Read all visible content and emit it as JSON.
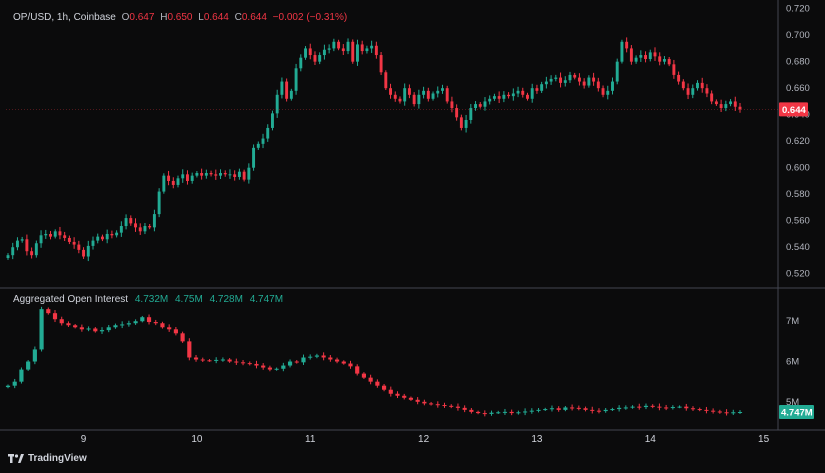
{
  "header": {
    "symbol": "OP/USD, 1h, Coinbase",
    "o_label": "O",
    "o_value": "0.647",
    "h_label": "H",
    "h_value": "0.650",
    "l_label": "L",
    "l_value": "0.644",
    "c_label": "C",
    "c_value": "0.644",
    "change": "−0.002 (−0.31%)"
  },
  "oi_legend": {
    "title": "Aggregated Open Interest",
    "v1": "4.732M",
    "v2": "4.75M",
    "v3": "4.728M",
    "v4": "4.747M"
  },
  "brand": {
    "name": "TradingView",
    "icon": "tradingview-logo-icon"
  },
  "colors": {
    "up": "#22ab94",
    "down": "#f23645",
    "background": "#0b0b0c",
    "grid": "#434651"
  },
  "chart_data": [
    {
      "type": "candlestick",
      "series": "OP/USD price",
      "ylim": [
        0.51,
        0.722
      ],
      "y_ticks": [
        "0.720",
        "0.700",
        "0.680",
        "0.660",
        "0.640",
        "0.620",
        "0.600",
        "0.580",
        "0.560",
        "0.540",
        "0.520"
      ],
      "last_price_badge": "0.644",
      "x_ticks": [
        "9",
        "10",
        "11",
        "12",
        "13",
        "14",
        "15"
      ],
      "x_tick_index": [
        16,
        40,
        64,
        88,
        112,
        136,
        160
      ],
      "closes": [
        0.534,
        0.54,
        0.545,
        0.546,
        0.537,
        0.534,
        0.543,
        0.549,
        0.55,
        0.548,
        0.552,
        0.549,
        0.547,
        0.544,
        0.542,
        0.538,
        0.533,
        0.541,
        0.545,
        0.548,
        0.546,
        0.55,
        0.549,
        0.551,
        0.556,
        0.562,
        0.558,
        0.555,
        0.552,
        0.556,
        0.555,
        0.565,
        0.582,
        0.594,
        0.59,
        0.587,
        0.592,
        0.595,
        0.59,
        0.594,
        0.596,
        0.594,
        0.596,
        0.595,
        0.594,
        0.596,
        0.595,
        0.595,
        0.593,
        0.597,
        0.591,
        0.6,
        0.615,
        0.618,
        0.622,
        0.63,
        0.641,
        0.655,
        0.665,
        0.652,
        0.658,
        0.675,
        0.683,
        0.69,
        0.685,
        0.68,
        0.685,
        0.689,
        0.69,
        0.695,
        0.69,
        0.688,
        0.695,
        0.68,
        0.693,
        0.688,
        0.69,
        0.692,
        0.685,
        0.672,
        0.66,
        0.655,
        0.652,
        0.65,
        0.66,
        0.655,
        0.648,
        0.655,
        0.658,
        0.652,
        0.656,
        0.658,
        0.66,
        0.65,
        0.645,
        0.638,
        0.63,
        0.636,
        0.645,
        0.648,
        0.646,
        0.65,
        0.652,
        0.654,
        0.652,
        0.655,
        0.654,
        0.656,
        0.658,
        0.655,
        0.652,
        0.66,
        0.658,
        0.663,
        0.665,
        0.667,
        0.668,
        0.664,
        0.666,
        0.67,
        0.668,
        0.665,
        0.662,
        0.668,
        0.665,
        0.66,
        0.655,
        0.658,
        0.665,
        0.68,
        0.695,
        0.69,
        0.68,
        0.683,
        0.685,
        0.682,
        0.687,
        0.684,
        0.68,
        0.682,
        0.678,
        0.67,
        0.665,
        0.66,
        0.655,
        0.66,
        0.664,
        0.66,
        0.656,
        0.65,
        0.648,
        0.645,
        0.648,
        0.65,
        0.646,
        0.644
      ]
    },
    {
      "type": "candlestick",
      "series": "Aggregated Open Interest",
      "ylim": [
        4.35,
        7.8
      ],
      "y_ticks": [
        "7M",
        "6M",
        "5M"
      ],
      "y_tick_values": [
        7,
        6,
        5
      ],
      "last_value_badge": "4.747M",
      "closes": [
        5.4,
        5.5,
        5.8,
        6.0,
        6.3,
        7.3,
        7.2,
        7.05,
        6.95,
        6.9,
        6.85,
        6.8,
        6.82,
        6.75,
        6.78,
        6.85,
        6.9,
        6.92,
        6.95,
        7.0,
        7.1,
        6.98,
        6.95,
        6.85,
        6.8,
        6.7,
        6.5,
        6.1,
        6.05,
        6.03,
        6.02,
        6.04,
        6.05,
        6.0,
        5.98,
        5.96,
        5.94,
        5.9,
        5.85,
        5.8,
        5.82,
        5.9,
        6.0,
        5.98,
        6.1,
        6.12,
        6.15,
        6.1,
        6.05,
        6.0,
        5.95,
        5.88,
        5.7,
        5.6,
        5.5,
        5.4,
        5.3,
        5.2,
        5.15,
        5.1,
        5.05,
        5.0,
        4.96,
        4.94,
        4.92,
        4.9,
        4.88,
        4.85,
        4.8,
        4.75,
        4.72,
        4.7,
        4.73,
        4.74,
        4.75,
        4.72,
        4.74,
        4.76,
        4.78,
        4.8,
        4.82,
        4.84,
        4.8,
        4.86,
        4.85,
        4.84,
        4.8,
        4.78,
        4.77,
        4.8,
        4.82,
        4.85,
        4.86,
        4.88,
        4.87,
        4.9,
        4.88,
        4.86,
        4.85,
        4.87,
        4.88,
        4.84,
        4.82,
        4.8,
        4.78,
        4.76,
        4.74,
        4.73,
        4.74,
        4.747
      ]
    }
  ]
}
